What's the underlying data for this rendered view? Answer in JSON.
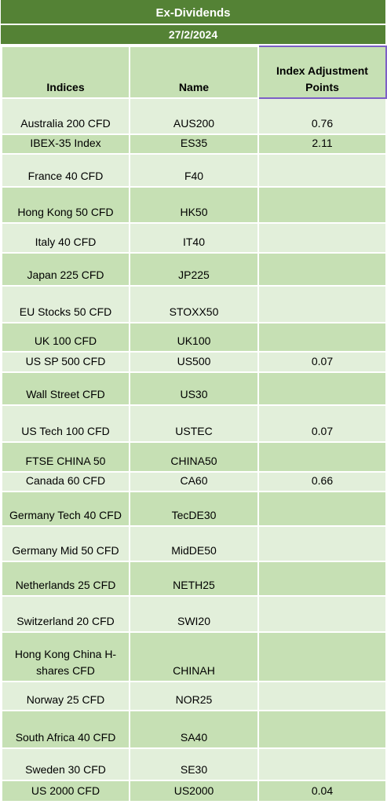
{
  "title": "Ex-Dividends",
  "date": "27/2/2024",
  "headers": {
    "indices": "Indices",
    "name": "Name",
    "points": "Index Adjustment Points"
  },
  "rows": [
    {
      "index": "Australia 200 CFD",
      "name": "AUS200",
      "points": "0.76"
    },
    {
      "index": "IBEX-35 Index",
      "name": "ES35",
      "points": "2.11"
    },
    {
      "index": "France 40 CFD",
      "name": "F40",
      "points": ""
    },
    {
      "index": "Hong Kong 50 CFD",
      "name": "HK50",
      "points": ""
    },
    {
      "index": "Italy 40 CFD",
      "name": "IT40",
      "points": ""
    },
    {
      "index": "Japan 225 CFD",
      "name": "JP225",
      "points": ""
    },
    {
      "index": "EU Stocks 50 CFD",
      "name": "STOXX50",
      "points": ""
    },
    {
      "index": "UK 100 CFD",
      "name": "UK100",
      "points": ""
    },
    {
      "index": "US SP 500 CFD",
      "name": "US500",
      "points": "0.07"
    },
    {
      "index": "Wall Street CFD",
      "name": "US30",
      "points": ""
    },
    {
      "index": "US Tech 100 CFD",
      "name": "USTEC",
      "points": "0.07"
    },
    {
      "index": "FTSE CHINA 50",
      "name": "CHINA50",
      "points": ""
    },
    {
      "index": "Canada 60 CFD",
      "name": "CA60",
      "points": "0.66"
    },
    {
      "index": "Germany Tech 40 CFD",
      "name": "TecDE30",
      "points": ""
    },
    {
      "index": "Germany Mid 50 CFD",
      "name": "MidDE50",
      "points": ""
    },
    {
      "index": "Netherlands 25 CFD",
      "name": "NETH25",
      "points": ""
    },
    {
      "index": "Switzerland 20 CFD",
      "name": "SWI20",
      "points": ""
    },
    {
      "index": "Hong Kong China H-shares CFD",
      "name": "CHINAH",
      "points": ""
    },
    {
      "index": "Norway 25 CFD",
      "name": "NOR25",
      "points": ""
    },
    {
      "index": "South Africa 40 CFD",
      "name": "SA40",
      "points": ""
    },
    {
      "index": "Sweden 30 CFD",
      "name": "SE30",
      "points": ""
    },
    {
      "index": "US 2000 CFD",
      "name": "US2000",
      "points": "0.04"
    }
  ],
  "colors": {
    "banner": "#548235",
    "header": "#c6e0b4",
    "row_light": "#e2efda",
    "row_dark": "#c6e0b4",
    "highlight_border": "#7d5fc7"
  }
}
